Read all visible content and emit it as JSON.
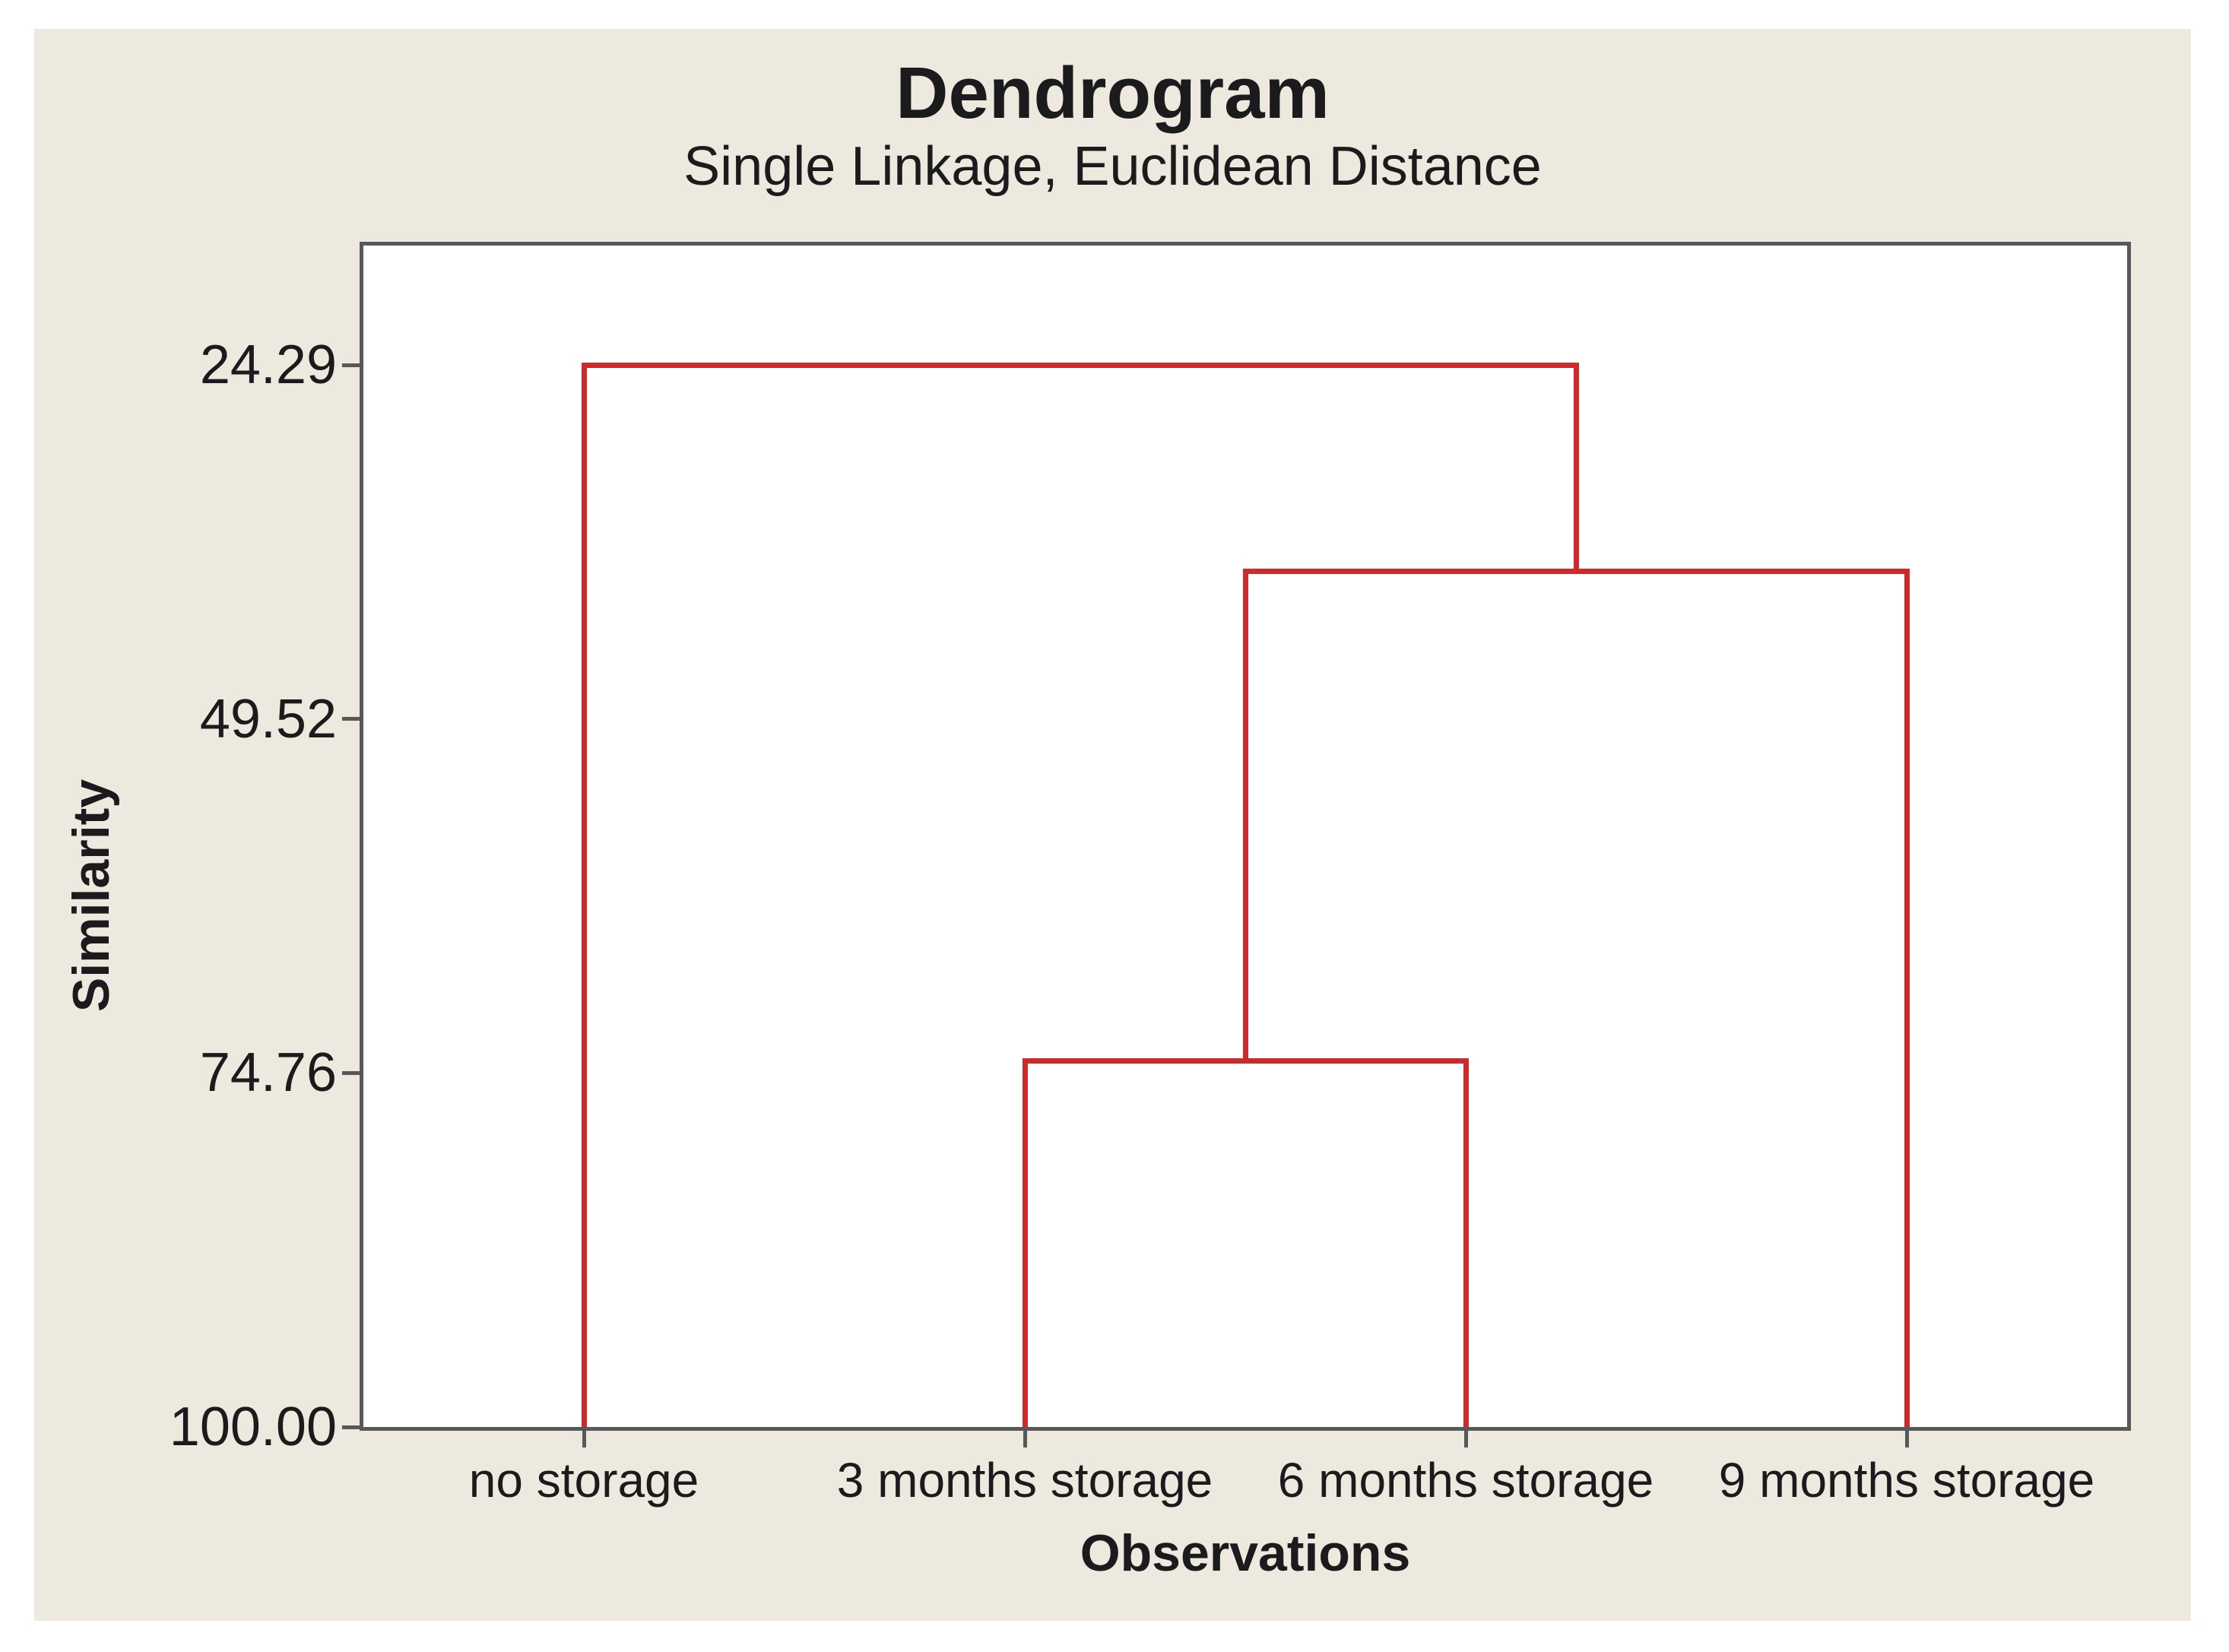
{
  "chart_data": {
    "type": "dendrogram",
    "title": "Dendrogram",
    "subtitle": "Single Linkage, Euclidean Distance",
    "xlabel": "Observations",
    "ylabel": "Similarity",
    "y_axis": {
      "direction": "inverted_top_is_min_similarity",
      "tick_values": [
        24.29,
        49.52,
        74.76,
        100.0
      ],
      "tick_labels": [
        "24.29",
        "49.52",
        "74.76",
        "100.00"
      ]
    },
    "leaves": [
      "no storage",
      "3 months storage",
      "6 months storage",
      "9 months storage"
    ],
    "merges": [
      {
        "a": {
          "type": "leaf",
          "index": 1
        },
        "b": {
          "type": "leaf",
          "index": 2
        },
        "similarity": 73.9
      },
      {
        "a": {
          "type": "merge",
          "index": 0
        },
        "b": {
          "type": "leaf",
          "index": 3
        },
        "similarity": 39.0
      },
      {
        "a": {
          "type": "leaf",
          "index": 0
        },
        "b": {
          "type": "merge",
          "index": 1
        },
        "similarity": 24.29
      }
    ],
    "colors": {
      "line": "#ce2a29",
      "panel_bg": "#eee9de",
      "plot_bg": "#ffffff",
      "border": "#58585a",
      "text": "#1b1b1d"
    },
    "legend": "none",
    "grid": "off"
  }
}
